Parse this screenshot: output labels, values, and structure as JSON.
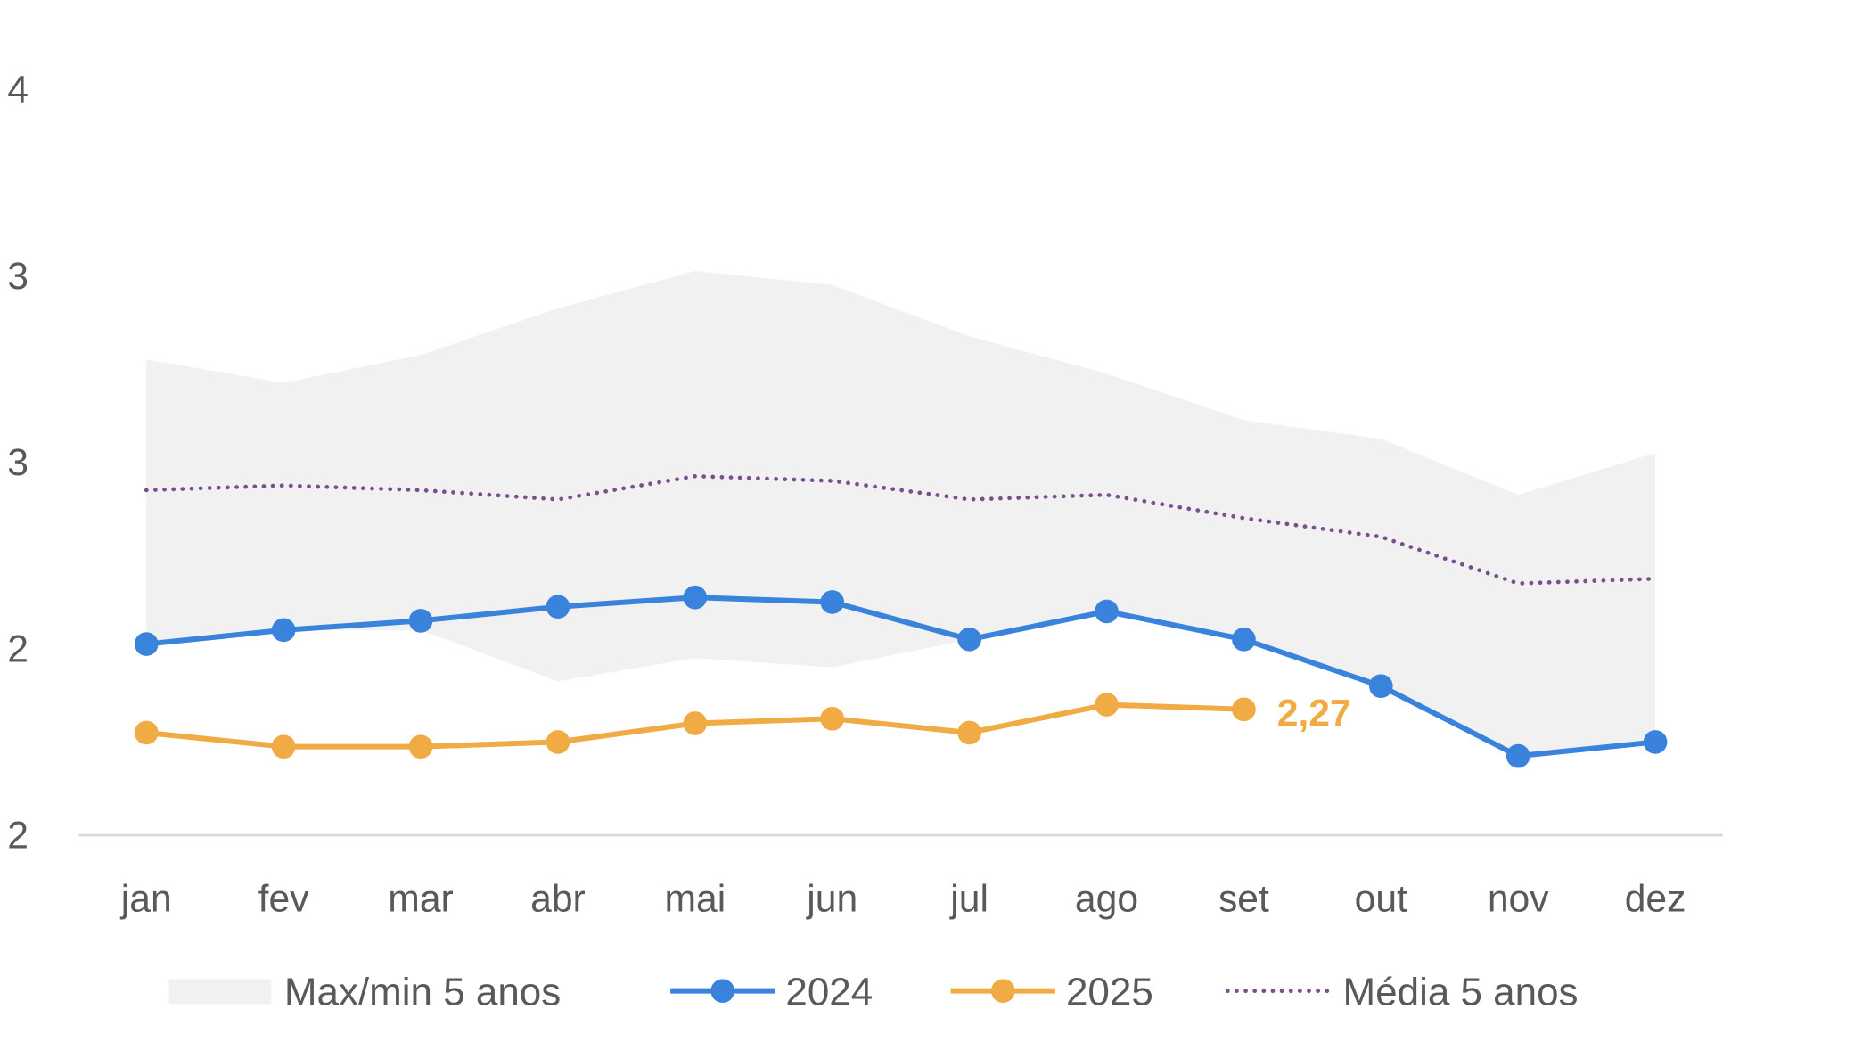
{
  "chart_data": {
    "type": "line",
    "title": "",
    "xlabel": "",
    "ylabel": "",
    "categories": [
      "jan",
      "fev",
      "mar",
      "abr",
      "mai",
      "jun",
      "jul",
      "ago",
      "set",
      "out",
      "nov",
      "dez"
    ],
    "ylim": [
      2.0,
      3.6
    ],
    "yticks": [
      2.0,
      2.4,
      2.8,
      3.2,
      3.6
    ],
    "ytick_labels": [
      "2",
      "2",
      "3",
      "3",
      "4"
    ],
    "grid": false,
    "legend_position": "bottom",
    "band": {
      "name": "Max/min 5 anos",
      "color": "#f1f1f1",
      "max": [
        3.02,
        2.97,
        3.03,
        3.13,
        3.21,
        3.18,
        3.07,
        2.99,
        2.89,
        2.85,
        2.73,
        2.82
      ],
      "min": [
        2.41,
        2.44,
        2.44,
        2.33,
        2.38,
        2.36,
        2.42,
        2.48,
        2.42,
        2.32,
        2.17,
        2.2
      ]
    },
    "series": [
      {
        "name": "2024",
        "color": "#3a83dd",
        "style": "solid-markers",
        "values": [
          2.41,
          2.44,
          2.46,
          2.49,
          2.51,
          2.5,
          2.42,
          2.48,
          2.42,
          2.32,
          2.17,
          2.2
        ]
      },
      {
        "name": "2025",
        "color": "#f0ab45",
        "style": "solid-markers",
        "values": [
          2.22,
          2.19,
          2.19,
          2.2,
          2.24,
          2.25,
          2.22,
          2.28,
          2.27,
          null,
          null,
          null
        ]
      },
      {
        "name": "Média 5 anos",
        "color": "#7b4f8f",
        "style": "dotted",
        "values": [
          2.74,
          2.75,
          2.74,
          2.72,
          2.77,
          2.76,
          2.72,
          2.73,
          2.68,
          2.64,
          2.54,
          2.55
        ]
      }
    ],
    "annotations": [
      {
        "series": "2025",
        "category": "set",
        "text": "2,27"
      }
    ]
  }
}
